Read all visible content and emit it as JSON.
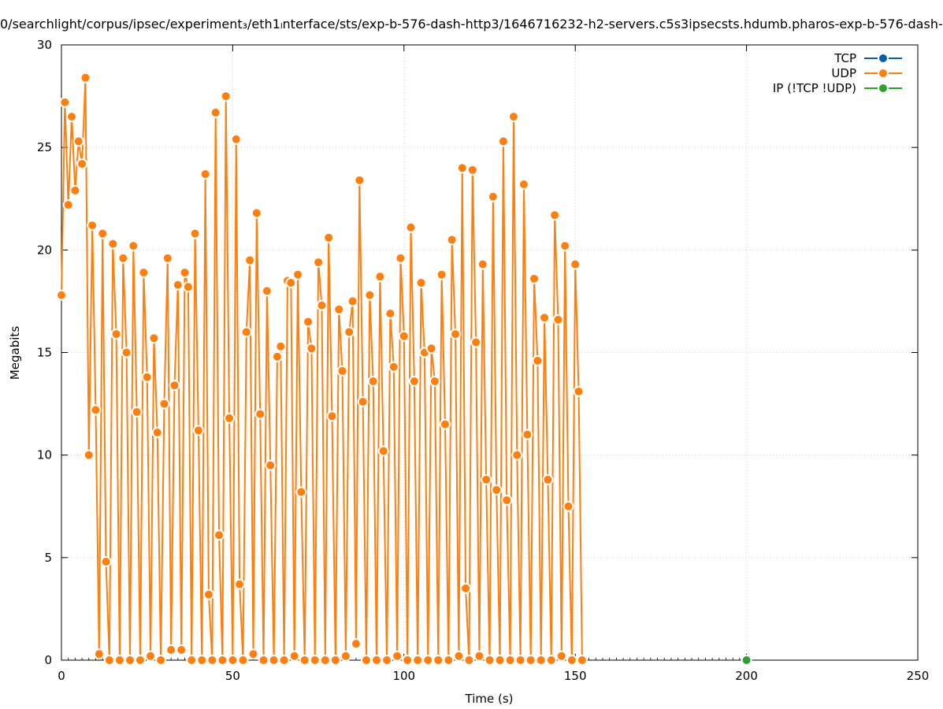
{
  "chart_data": {
    "type": "line",
    "title": "0/searchlight/corpus/ipsec/experiment₃/eth1ₗnterface/sts/exp-b-576-dash-http3/1646716232-h2-servers.c5s3ipsecsts.hdumb.pharos-exp-b-576-dash-",
    "xlabel": "Time (s)",
    "ylabel": "Megabits",
    "xlim": [
      0,
      250
    ],
    "ylim": [
      0,
      30
    ],
    "xticks": [
      0,
      50,
      100,
      150,
      200,
      250
    ],
    "yticks": [
      0,
      5,
      10,
      15,
      20,
      25,
      30
    ],
    "grid": true,
    "legend_position": "top-right",
    "series": [
      {
        "name": "TCP",
        "color": "#0060ad",
        "points": []
      },
      {
        "name": "UDP",
        "color": "#ff7f0e",
        "points": [
          [
            0,
            17.8
          ],
          [
            1,
            27.2
          ],
          [
            2,
            22.2
          ],
          [
            3,
            26.5
          ],
          [
            4,
            22.9
          ],
          [
            5,
            25.3
          ],
          [
            6,
            24.2
          ],
          [
            7,
            28.4
          ],
          [
            8,
            10.0
          ],
          [
            9,
            21.2
          ],
          [
            10,
            12.2
          ],
          [
            11,
            0.3
          ],
          [
            12,
            20.8
          ],
          [
            13,
            4.8
          ],
          [
            14,
            0
          ],
          [
            15,
            20.3
          ],
          [
            16,
            15.9
          ],
          [
            17,
            0
          ],
          [
            18,
            19.6
          ],
          [
            19,
            15.0
          ],
          [
            20,
            0
          ],
          [
            21,
            20.2
          ],
          [
            22,
            12.1
          ],
          [
            23,
            0
          ],
          [
            24,
            18.9
          ],
          [
            25,
            13.8
          ],
          [
            26,
            0.2
          ],
          [
            27,
            15.7
          ],
          [
            28,
            11.1
          ],
          [
            29,
            0
          ],
          [
            30,
            12.5
          ],
          [
            31,
            19.6
          ],
          [
            32,
            0.5
          ],
          [
            33,
            13.4
          ],
          [
            34,
            18.3
          ],
          [
            35,
            0.5
          ],
          [
            36,
            18.9
          ],
          [
            37,
            18.2
          ],
          [
            38,
            0
          ],
          [
            39,
            20.8
          ],
          [
            40,
            11.2
          ],
          [
            41,
            0
          ],
          [
            42,
            23.7
          ],
          [
            43,
            3.2
          ],
          [
            44,
            0
          ],
          [
            45,
            26.7
          ],
          [
            46,
            6.1
          ],
          [
            47,
            0
          ],
          [
            48,
            27.5
          ],
          [
            49,
            11.8
          ],
          [
            50,
            0
          ],
          [
            51,
            25.4
          ],
          [
            52,
            3.7
          ],
          [
            53,
            0
          ],
          [
            54,
            16.0
          ],
          [
            55,
            19.5
          ],
          [
            56,
            0.3
          ],
          [
            57,
            21.8
          ],
          [
            58,
            12.0
          ],
          [
            59,
            0
          ],
          [
            60,
            18.0
          ],
          [
            61,
            9.5
          ],
          [
            62,
            0
          ],
          [
            63,
            14.8
          ],
          [
            64,
            15.3
          ],
          [
            65,
            0
          ],
          [
            66,
            18.5
          ],
          [
            67,
            18.4
          ],
          [
            68,
            0.2
          ],
          [
            69,
            18.8
          ],
          [
            70,
            8.2
          ],
          [
            71,
            0
          ],
          [
            72,
            16.5
          ],
          [
            73,
            15.2
          ],
          [
            74,
            0
          ],
          [
            75,
            19.4
          ],
          [
            76,
            17.3
          ],
          [
            77,
            0
          ],
          [
            78,
            20.6
          ],
          [
            79,
            11.9
          ],
          [
            80,
            0
          ],
          [
            81,
            17.1
          ],
          [
            82,
            14.1
          ],
          [
            83,
            0.2
          ],
          [
            84,
            16.0
          ],
          [
            85,
            17.5
          ],
          [
            86,
            0.8
          ],
          [
            87,
            23.4
          ],
          [
            88,
            12.6
          ],
          [
            89,
            0
          ],
          [
            90,
            17.8
          ],
          [
            91,
            13.6
          ],
          [
            92,
            0
          ],
          [
            93,
            18.7
          ],
          [
            94,
            10.2
          ],
          [
            95,
            0
          ],
          [
            96,
            16.9
          ],
          [
            97,
            14.3
          ],
          [
            98,
            0.2
          ],
          [
            99,
            19.6
          ],
          [
            100,
            15.8
          ],
          [
            101,
            0
          ],
          [
            102,
            21.1
          ],
          [
            103,
            13.6
          ],
          [
            104,
            0
          ],
          [
            105,
            18.4
          ],
          [
            106,
            15.0
          ],
          [
            107,
            0
          ],
          [
            108,
            15.2
          ],
          [
            109,
            13.6
          ],
          [
            110,
            0
          ],
          [
            111,
            18.8
          ],
          [
            112,
            11.5
          ],
          [
            113,
            0
          ],
          [
            114,
            20.5
          ],
          [
            115,
            15.9
          ],
          [
            116,
            0.2
          ],
          [
            117,
            24.0
          ],
          [
            118,
            3.5
          ],
          [
            119,
            0
          ],
          [
            120,
            23.9
          ],
          [
            121,
            15.5
          ],
          [
            122,
            0.2
          ],
          [
            123,
            19.3
          ],
          [
            124,
            8.8
          ],
          [
            125,
            0
          ],
          [
            126,
            22.6
          ],
          [
            127,
            8.3
          ],
          [
            128,
            0
          ],
          [
            129,
            25.3
          ],
          [
            130,
            7.8
          ],
          [
            131,
            0
          ],
          [
            132,
            26.5
          ],
          [
            133,
            10.0
          ],
          [
            134,
            0
          ],
          [
            135,
            23.2
          ],
          [
            136,
            11.0
          ],
          [
            137,
            0
          ],
          [
            138,
            18.6
          ],
          [
            139,
            14.6
          ],
          [
            140,
            0
          ],
          [
            141,
            16.7
          ],
          [
            142,
            8.8
          ],
          [
            143,
            0
          ],
          [
            144,
            21.7
          ],
          [
            145,
            16.6
          ],
          [
            146,
            0.2
          ],
          [
            147,
            20.2
          ],
          [
            148,
            7.5
          ],
          [
            149,
            0
          ],
          [
            150,
            19.3
          ],
          [
            151,
            13.1
          ],
          [
            152,
            0
          ]
        ]
      },
      {
        "name": "IP (!TCP  !UDP)",
        "color": "#2ca02c",
        "points": [
          [
            200,
            0
          ]
        ]
      }
    ]
  }
}
